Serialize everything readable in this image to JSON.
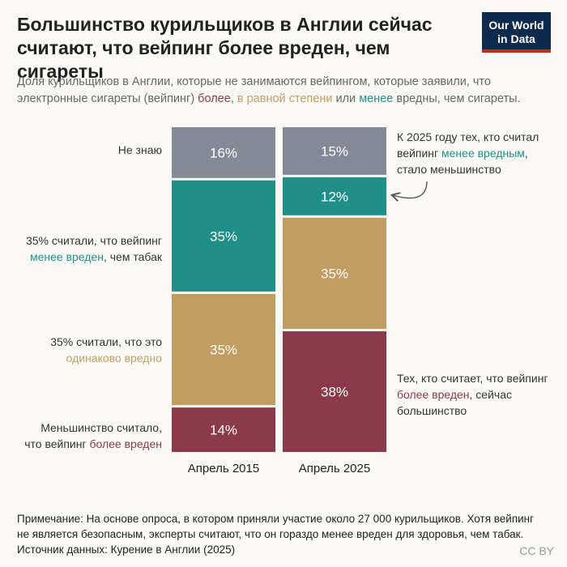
{
  "title": "Большинство курильщиков в Англии сейчас считают, что вейпинг более вреден, чем сигареты",
  "logo": {
    "line1": "Our World",
    "line2": "in Data"
  },
  "subtitle": {
    "part1": "Доля курильщиков в Англии, которые не занимаются вейпингом, которые заявили, что электронные сигареты (вейпинг) ",
    "more": "более",
    "sep1": ", ",
    "same": "в равной степени",
    "sep2": " или ",
    "less": "менее",
    "part2": " вредны, чем сигареты."
  },
  "left_labels": {
    "dont_know": "Не знаю",
    "less_line1": "35% считали, что вейпинг",
    "less_colored": "менее вреден",
    "less_rest": ", чем табак",
    "same_line1": "35% считали, что это",
    "same_colored": "одинаково вредно",
    "more_line1": "Меньшинство считало,",
    "more_plain": "что вейпинг ",
    "more_colored": "более вреден"
  },
  "right_labels": {
    "top_line1": "К 2025 году тех, кто считал",
    "top_plain": "вейпинг ",
    "top_colored": "менее вредным",
    "top_comma": ",",
    "top_line3": "стало меньшинство",
    "bottom_line1": "Тех, кто считает, что вейпинг",
    "bottom_colored": "более вреден",
    "bottom_rest": ", сейчас",
    "bottom_line3": "большинство"
  },
  "chart_data": {
    "type": "bar",
    "stacked": true,
    "categories": [
      "Апрель 2015",
      "Апрель 2025"
    ],
    "series": [
      {
        "name": "Не знаю",
        "values": [
          16,
          15
        ],
        "color": "#848a95"
      },
      {
        "name": "менее вреден",
        "values": [
          35,
          12
        ],
        "color": "#1f8f88"
      },
      {
        "name": "одинаково вредно",
        "values": [
          35,
          35
        ],
        "color": "#c29d61"
      },
      {
        "name": "более вреден",
        "values": [
          14,
          38
        ],
        "color": "#8a3a4a"
      }
    ],
    "value_suffix": "%"
  },
  "note": {
    "line1": "Примечание: На основе опроса, в котором приняли участие около 27 000 курильщиков. Хотя вейпинг",
    "line2": "не является безопасным, эксперты считают, что он гораздо менее вреден для здоровья, чем табак.",
    "line3": "Источник данных: Курение в Англии (2025)"
  },
  "license": "CC BY"
}
